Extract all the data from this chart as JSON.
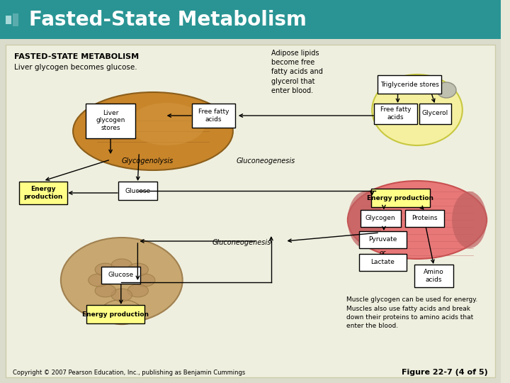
{
  "title": "Fasted-State Metabolism",
  "title_bg": "#2a9494",
  "title_color": "white",
  "title_fontsize": 20,
  "body_bg": "#e8e8d8",
  "main_label": "FASTED-STATE METABOLISM",
  "sub_label1": "Liver glycogen becomes glucose.",
  "adipose_text": "Adipose lipids\nbecome free\nfatty acids and\nglycerol that\nenter blood.",
  "copyright": "Copyright © 2007 Pearson Education, Inc., publishing as Benjamin Cummings",
  "figure_label": "Figure 22-7 (4 of 5)",
  "muscle_text": "Muscle glycogen can be used for energy.\nMuscles also use fatty acids and break\ndown their proteins to amino acids that\nenter the blood.",
  "header_stripe_colors": [
    "#a8d8d8",
    "#5aacac",
    "#2a9494"
  ],
  "box_yellow": "#ffff88",
  "box_white": "white",
  "arrow_color": "black",
  "gluconeo_label": "Gluconeogenesis",
  "glycogeno_label": "Glycogenolysis"
}
